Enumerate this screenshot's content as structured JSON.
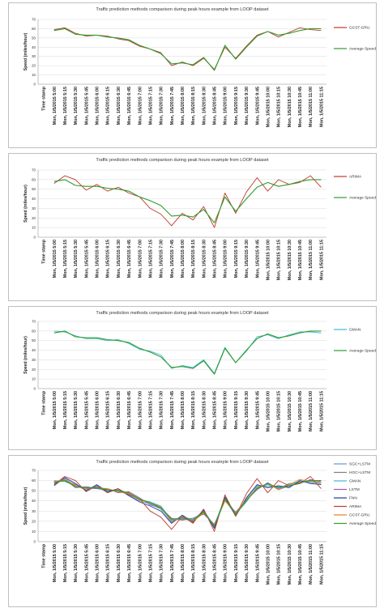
{
  "chart_data": [
    {
      "type": "line",
      "title": "Traffic prediction methods comparison during peak hours example from LOOP dataset",
      "xlabel": "Time stamp",
      "ylabel": "Speed (miles/hour)",
      "ylim": [
        0,
        70
      ],
      "yticks": [
        0,
        10,
        20,
        30,
        40,
        50,
        60,
        70
      ],
      "legend_position": "right",
      "categories": [
        "5:00",
        "5:15",
        "5:30",
        "5:45",
        "6:00",
        "6:15",
        "6:30",
        "6:45",
        "7:00",
        "7:15",
        "7:30",
        "7:45",
        "8:00",
        "8:15",
        "8:30",
        "8:45",
        "9:00",
        "9:15",
        "9:30",
        "9:45",
        "10:00",
        "10:15",
        "10:30",
        "10:45",
        "11:00",
        "11:15"
      ],
      "x_tick_labels": [
        "Time stamp",
        "Mon, 1/5/2015 5:00",
        "Mon, 1/5/2015 5:15",
        "Mon, 1/5/2015 5:30",
        "Mon, 1/5/2015 5:45",
        "Mon, 1/5/2015 6:00",
        "Mon, 1/5/2015 6:15",
        "Mon, 1/5/2015 6:30",
        "Mon, 1/5/2015 6:45",
        "Mon, 1/5/2015 7:00",
        "Mon, 1/5/2015 7:15",
        "Mon, 1/5/2015 7:30",
        "Mon, 1/5/2015 7:45",
        "Mon, 1/5/2015 8:00",
        "Mon, 1/5/2015 8:15",
        "Mon, 1/5/2015 8:30",
        "Mon, 1/5/2015 8:45",
        "Mon, 1/5/2015 9:00",
        "Mon, 1/5/2015 9:15",
        "Mon, 1/5/2015 9:30",
        "Mon, 1/5/2015 9:45",
        "Mon, 1/5/2015 10:00",
        "Mon, 1/5/2015 10:15",
        "Mon, 1/5/2015 10:30",
        "Mon, 1/5/2015 10:45",
        "Mon, 1/5/2015 11:00",
        "Mon, 1/5/2015 11:15"
      ],
      "series": [
        {
          "name": "GCST-GRU",
          "color": "#c0392b",
          "values": [
            59,
            61,
            55,
            52,
            53,
            52,
            49,
            47,
            41,
            38,
            34,
            20,
            24,
            20,
            28,
            16,
            40,
            28,
            41,
            53,
            57,
            51,
            56,
            61,
            59,
            58
          ]
        },
        {
          "name": "Average Speed",
          "color": "#2e9c2e",
          "values": [
            58,
            60,
            54,
            53,
            53,
            51,
            50,
            48,
            42,
            38,
            33,
            22,
            23,
            21,
            29,
            15,
            42,
            27,
            40,
            52,
            57,
            53,
            55,
            58,
            60,
            60
          ]
        }
      ]
    },
    {
      "type": "line",
      "title": "Traffic prediction methods comparison during peak hours example from LOOP dataset",
      "xlabel": "Time stamp",
      "ylabel": "Speed (miles/hour)",
      "ylim": [
        0,
        70
      ],
      "yticks": [
        0,
        10,
        20,
        30,
        40,
        50,
        60,
        70
      ],
      "legend_position": "right",
      "categories": [
        "5:00",
        "5:15",
        "5:30",
        "5:45",
        "6:00",
        "6:15",
        "6:30",
        "6:45",
        "7:00",
        "7:15",
        "7:30",
        "7:45",
        "8:00",
        "8:15",
        "8:30",
        "8:45",
        "9:00",
        "9:15",
        "9:30",
        "9:45",
        "10:00",
        "10:15",
        "10:30",
        "10:45",
        "11:00",
        "11:15"
      ],
      "x_tick_labels": [
        "Time stamp",
        "Mon, 1/5/2015 5:00",
        "Mon, 1/5/2015 5:15",
        "Mon, 1/5/2015 5:30",
        "Mon, 1/5/2015 5:45",
        "Mon, 1/5/2015 6:00",
        "Mon, 1/5/2015 6:15",
        "Mon, 1/5/2015 6:30",
        "Mon, 1/5/2015 6:45",
        "Mon, 1/5/2015 7:00",
        "Mon, 1/5/2015 7:15",
        "Mon, 1/5/2015 7:30",
        "Mon, 1/5/2015 7:45",
        "Mon, 1/5/2015 8:00",
        "Mon, 1/5/2015 8:15",
        "Mon, 1/5/2015 8:30",
        "Mon, 1/5/2015 8:45",
        "Mon, 1/5/2015 9:00",
        "Mon, 1/5/2015 9:15",
        "Mon, 1/5/2015 9:30",
        "Mon, 1/5/2015 9:45",
        "Mon, 1/5/2015 10:00",
        "Mon, 1/5/2015 10:15",
        "Mon, 1/5/2015 10:30",
        "Mon, 1/5/2015 10:45",
        "Mon, 1/5/2015 11:00",
        "Mon, 1/5/2015 11:15"
      ],
      "series": [
        {
          "name": "ARIMA",
          "color": "#c0392b",
          "values": [
            56,
            64,
            60,
            49,
            55,
            48,
            52,
            46,
            42,
            30,
            24,
            12,
            25,
            18,
            32,
            10,
            46,
            25,
            47,
            62,
            48,
            60,
            55,
            57,
            64,
            52
          ]
        },
        {
          "name": "Average Speed",
          "color": "#2e9c2e",
          "values": [
            58,
            60,
            54,
            53,
            53,
            51,
            50,
            48,
            42,
            38,
            33,
            22,
            23,
            21,
            29,
            15,
            42,
            27,
            40,
            52,
            57,
            53,
            55,
            58,
            60,
            60
          ]
        }
      ]
    },
    {
      "type": "line",
      "title": "Traffic prediction methods comparison during peak hours example from LOOP dataset",
      "xlabel": "Time stamp",
      "ylabel": "Speed (miles/hour)",
      "ylim": [
        0,
        70
      ],
      "yticks": [
        0,
        10,
        20,
        30,
        40,
        50,
        60,
        70
      ],
      "legend_position": "right",
      "categories": [
        "5:00",
        "5:15",
        "5:30",
        "5:45",
        "6:00",
        "6:15",
        "6:30",
        "6:45",
        "7:00",
        "7:15",
        "7:30",
        "7:45",
        "8:00",
        "8:15",
        "8:30",
        "8:45",
        "9:00",
        "9:15",
        "9:30",
        "9:45",
        "10:00",
        "10:15",
        "10:30",
        "10:45",
        "11:00",
        "11:15"
      ],
      "x_tick_labels": [
        "Time stamp",
        "Mon, 1/5/2015 5:00",
        "Mon, 1/5/2015 5:15",
        "Mon, 1/5/2015 5:30",
        "Mon, 1/5/2015 5:45",
        "Mon, 1/5/2015 6:00",
        "Mon, 1/5/2015 6:15",
        "Mon, 1/5/2015 6:30",
        "Mon, 1/5/2015 6:45",
        "Mon, 1/5/2015 7:00",
        "Mon, 1/5/2015 7:15",
        "Mon, 1/5/2015 7:30",
        "Mon, 1/5/2015 7:45",
        "Mon, 1/5/2015 8:00",
        "Mon, 1/5/2015 8:15",
        "Mon, 1/5/2015 8:30",
        "Mon, 1/5/2015 8:45",
        "Mon, 1/5/2015 9:00",
        "Mon, 1/5/2015 9:15",
        "Mon, 1/5/2015 9:30",
        "Mon, 1/5/2015 9:45",
        "Mon, 1/5/2015 10:00",
        "Mon, 1/5/2015 10:15",
        "Mon, 1/5/2015 10:30",
        "Mon, 1/5/2015 10:45",
        "Mon, 1/5/2015 11:00",
        "Mon, 1/5/2015 11:15"
      ],
      "series": [
        {
          "name": "GMAN",
          "color": "#3fb7d6",
          "values": [
            60,
            59,
            55,
            52,
            52,
            50,
            51,
            47,
            41,
            39,
            35,
            21,
            24,
            22,
            30,
            16,
            43,
            27,
            39,
            54,
            56,
            52,
            56,
            59,
            59,
            58
          ]
        },
        {
          "name": "Average Speed",
          "color": "#2e9c2e",
          "values": [
            58,
            60,
            54,
            53,
            53,
            51,
            50,
            48,
            42,
            38,
            33,
            22,
            23,
            21,
            29,
            15,
            42,
            27,
            40,
            52,
            57,
            53,
            55,
            58,
            60,
            60
          ]
        }
      ]
    },
    {
      "type": "line",
      "title": "Traffic prediction methods comparison during peak hours example from LOOP dataset",
      "xlabel": "Time stamp",
      "ylabel": "Speed (miles/hour)",
      "ylim": [
        0,
        70
      ],
      "yticks": [
        0,
        10,
        20,
        30,
        40,
        50,
        60,
        70
      ],
      "legend_position": "right",
      "categories": [
        "5:00",
        "5:15",
        "5:30",
        "5:45",
        "6:00",
        "6:15",
        "6:30",
        "6:45",
        "7:00",
        "7:15",
        "7:30",
        "7:45",
        "8:00",
        "8:15",
        "8:30",
        "8:45",
        "9:00",
        "9:15",
        "9:30",
        "9:45",
        "10:00",
        "10:15",
        "10:30",
        "10:45",
        "11:00",
        "11:15"
      ],
      "x_tick_labels": [
        "Time stamp",
        "Mon, 1/5/2015 5:00",
        "Mon, 1/5/2015 5:15",
        "Mon, 1/5/2015 5:30",
        "Mon, 1/5/2015 5:45",
        "Mon, 1/5/2015 6:00",
        "Mon, 1/5/2015 6:15",
        "Mon, 1/5/2015 6:30",
        "Mon, 1/5/2015 6:45",
        "Mon, 1/5/2015 7:00",
        "Mon, 1/5/2015 7:15",
        "Mon, 1/5/2015 7:30",
        "Mon, 1/5/2015 7:45",
        "Mon, 1/5/2015 8:00",
        "Mon, 1/5/2015 8:15",
        "Mon, 1/5/2015 8:30",
        "Mon, 1/5/2015 8:45",
        "Mon, 1/5/2015 9:00",
        "Mon, 1/5/2015 9:15",
        "Mon, 1/5/2015 9:30",
        "Mon, 1/5/2015 9:45",
        "Mon, 1/5/2015 10:00",
        "Mon, 1/5/2015 10:15",
        "Mon, 1/5/2015 10:30",
        "Mon, 1/5/2015 10:45",
        "Mon, 1/5/2015 11:00",
        "Mon, 1/5/2015 11:15"
      ],
      "series": [
        {
          "name": "SGC+LSTM",
          "color": "#5b9bd5",
          "values": [
            57,
            62,
            55,
            51,
            54,
            50,
            50,
            46,
            40,
            37,
            32,
            19,
            25,
            20,
            30,
            14,
            41,
            26,
            42,
            55,
            54,
            54,
            54,
            59,
            58,
            57
          ]
        },
        {
          "name": "HGC+LSTM",
          "color": "#7f7f7f",
          "values": [
            59,
            60,
            56,
            52,
            53,
            51,
            49,
            48,
            41,
            39,
            34,
            21,
            22,
            21,
            28,
            16,
            43,
            28,
            40,
            53,
            56,
            52,
            57,
            58,
            60,
            58
          ]
        },
        {
          "name": "GMAN",
          "color": "#3fb7d6",
          "values": [
            60,
            59,
            55,
            52,
            52,
            50,
            51,
            47,
            41,
            39,
            35,
            21,
            24,
            22,
            30,
            16,
            43,
            27,
            39,
            54,
            56,
            52,
            56,
            59,
            59,
            58
          ]
        },
        {
          "name": "LSTM",
          "color": "#9b59b6",
          "values": [
            58,
            61,
            53,
            54,
            52,
            52,
            48,
            49,
            43,
            36,
            33,
            23,
            21,
            23,
            27,
            17,
            40,
            29,
            41,
            51,
            58,
            51,
            55,
            57,
            61,
            59
          ]
        },
        {
          "name": "FNN",
          "color": "#1f3a93",
          "values": [
            55,
            63,
            57,
            50,
            56,
            49,
            52,
            45,
            39,
            35,
            30,
            18,
            26,
            19,
            31,
            13,
            44,
            25,
            43,
            56,
            53,
            55,
            53,
            60,
            57,
            56
          ]
        },
        {
          "name": "ARIMA",
          "color": "#c0392b",
          "values": [
            56,
            64,
            60,
            49,
            55,
            48,
            52,
            46,
            42,
            30,
            24,
            12,
            25,
            18,
            32,
            10,
            46,
            25,
            47,
            62,
            48,
            60,
            55,
            57,
            64,
            52
          ]
        },
        {
          "name": "GCST-GRU",
          "color": "#e67e22",
          "values": [
            59,
            61,
            55,
            52,
            53,
            52,
            49,
            47,
            41,
            38,
            34,
            20,
            24,
            20,
            28,
            16,
            40,
            28,
            41,
            53,
            57,
            51,
            56,
            61,
            59,
            58
          ]
        },
        {
          "name": "Average Speed",
          "color": "#2e9c2e",
          "values": [
            58,
            60,
            54,
            53,
            53,
            51,
            50,
            48,
            42,
            38,
            33,
            22,
            23,
            21,
            29,
            15,
            42,
            27,
            40,
            52,
            57,
            53,
            55,
            58,
            60,
            60
          ]
        }
      ]
    }
  ]
}
